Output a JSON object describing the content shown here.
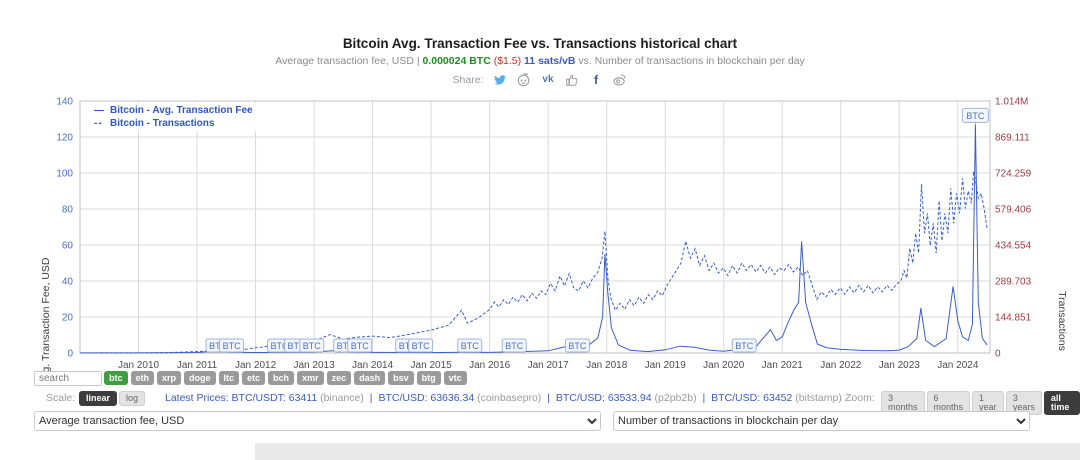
{
  "page_title": "Bitcoin Avg. Transaction Fee vs. Transactions historical chart",
  "subtitle": {
    "prefix": "Average transaction fee, USD | ",
    "btc_value": "0.000024 BTC",
    "usd_value": " ($1.5) ",
    "sats_value": "11 sats/vB",
    "suffix": " vs. Number of transactions in blockchain per day"
  },
  "share": {
    "label": "Share:",
    "icons": [
      "twitter",
      "reddit",
      "vk",
      "like",
      "facebook",
      "weibo"
    ],
    "vk_text": "vk",
    "fb_text": "f"
  },
  "search": {
    "placeholder": "search"
  },
  "coins": {
    "active": "btc",
    "items": [
      "btc",
      "eth",
      "xrp",
      "doge",
      "ltc",
      "etc",
      "bch",
      "xmr",
      "zec",
      "dash",
      "bsv",
      "btg",
      "vtc"
    ]
  },
  "scale": {
    "label": "Scale:",
    "options": [
      "linear",
      "log"
    ],
    "selected": "linear"
  },
  "latest_prices": {
    "label": "Latest Prices:",
    "separator": "|",
    "items": [
      {
        "pair": "BTC/USDT:",
        "price": "63411",
        "exchange": "(binance)"
      },
      {
        "pair": "BTC/USD:",
        "price": "63636.34",
        "exchange": "(coinbasepro)"
      },
      {
        "pair": "BTC/USD:",
        "price": "63533.94",
        "exchange": "(p2pb2b)"
      },
      {
        "pair": "BTC/USD:",
        "price": "63452",
        "exchange": "(bitstamp)"
      }
    ]
  },
  "zoom": {
    "label": "Zoom:",
    "options": [
      "3 months",
      "6 months",
      "1 year",
      "3 years",
      "all time"
    ],
    "selected": "all time"
  },
  "selectors": {
    "left": "Average transaction fee, USD",
    "right": "Number of transactions in blockchain per day"
  },
  "chart_data": {
    "type": "line",
    "title": "Bitcoin Avg. Transaction Fee vs. Transactions historical chart",
    "grid": true,
    "legend_position": "top-left",
    "x_axis": {
      "min": 2009,
      "max": 2024.55,
      "years": [
        2010,
        2011,
        2012,
        2013,
        2014,
        2015,
        2016,
        2017,
        2018,
        2019,
        2020,
        2021,
        2022,
        2023,
        2024
      ],
      "labels": [
        "Jan 2010",
        "Jan 2011",
        "Jan 2012",
        "Jan 2013",
        "Jan 2014",
        "Jan 2015",
        "Jan 2016",
        "Jan 2017",
        "Jan 2018",
        "Jan 2019",
        "Jan 2020",
        "Jan 2021",
        "Jan 2022",
        "Jan 2023",
        "Jan 2024"
      ]
    },
    "y_left": {
      "title": "Avg. Transaction Fee, USD",
      "max": 140,
      "ticks": [
        0,
        20,
        40,
        60,
        80,
        100,
        120,
        140
      ],
      "color": "#4a6fc9"
    },
    "y_right": {
      "title": "Transactions",
      "max": 1014000,
      "tick_labels": [
        "0",
        "144.851",
        "289.703",
        "434.554",
        "579.406",
        "724.259",
        "869.111",
        "1.014M"
      ],
      "color": "#a33c40"
    },
    "flags": {
      "label": "BTC",
      "bottom_years": [
        2011.36,
        2011.59,
        2012.41,
        2012.7,
        2012.96,
        2013.54,
        2013.78,
        2014.6,
        2014.82,
        2015.66,
        2016.42,
        2017.5,
        2020.35
      ],
      "top": {
        "year": 2024.3,
        "value": 127
      }
    },
    "series": [
      {
        "name": "Bitcoin - Avg. Transaction Fee",
        "symbol": "—",
        "style": "solid",
        "axis": "left",
        "unit": "USD",
        "color": "#3a5ec8",
        "points": [
          [
            2009.0,
            0.05
          ],
          [
            2010.0,
            0.05
          ],
          [
            2010.5,
            0.1
          ],
          [
            2011.0,
            0.3
          ],
          [
            2011.35,
            1.1
          ],
          [
            2011.5,
            0.5
          ],
          [
            2012.0,
            0.3
          ],
          [
            2012.5,
            0.35
          ],
          [
            2013.0,
            0.4
          ],
          [
            2013.3,
            1.3
          ],
          [
            2013.6,
            0.5
          ],
          [
            2014.0,
            0.35
          ],
          [
            2014.5,
            0.3
          ],
          [
            2015.0,
            0.25
          ],
          [
            2015.5,
            0.4
          ],
          [
            2016.0,
            0.35
          ],
          [
            2016.5,
            0.7
          ],
          [
            2017.0,
            1.2
          ],
          [
            2017.2,
            2.8
          ],
          [
            2017.4,
            4.2
          ],
          [
            2017.55,
            3.0
          ],
          [
            2017.7,
            4.5
          ],
          [
            2017.85,
            8.5
          ],
          [
            2017.93,
            20
          ],
          [
            2017.97,
            55
          ],
          [
            2018.02,
            33
          ],
          [
            2018.08,
            14
          ],
          [
            2018.2,
            4.5
          ],
          [
            2018.4,
            1.5
          ],
          [
            2018.7,
            0.8
          ],
          [
            2019.0,
            1.8
          ],
          [
            2019.25,
            3.8
          ],
          [
            2019.5,
            3.2
          ],
          [
            2019.75,
            1.6
          ],
          [
            2020.0,
            1.0
          ],
          [
            2020.3,
            2.2
          ],
          [
            2020.38,
            6.2
          ],
          [
            2020.55,
            3.5
          ],
          [
            2020.8,
            13
          ],
          [
            2020.9,
            7
          ],
          [
            2021.0,
            9
          ],
          [
            2021.1,
            17
          ],
          [
            2021.2,
            24
          ],
          [
            2021.28,
            28
          ],
          [
            2021.33,
            62
          ],
          [
            2021.4,
            28
          ],
          [
            2021.5,
            16
          ],
          [
            2021.6,
            5
          ],
          [
            2021.75,
            3
          ],
          [
            2022.0,
            2
          ],
          [
            2022.4,
            1.4
          ],
          [
            2022.8,
            1.2
          ],
          [
            2023.0,
            1.6
          ],
          [
            2023.15,
            3.5
          ],
          [
            2023.3,
            8
          ],
          [
            2023.37,
            25
          ],
          [
            2023.45,
            7
          ],
          [
            2023.6,
            3.5
          ],
          [
            2023.8,
            8
          ],
          [
            2023.92,
            37
          ],
          [
            2024.0,
            18
          ],
          [
            2024.08,
            9
          ],
          [
            2024.18,
            7
          ],
          [
            2024.25,
            16
          ],
          [
            2024.3,
            127
          ],
          [
            2024.35,
            28
          ],
          [
            2024.42,
            8
          ],
          [
            2024.5,
            4.5
          ]
        ]
      },
      {
        "name": "Bitcoin - Transactions",
        "symbol": "--",
        "style": "dashed",
        "axis": "right",
        "unit": "transactions per day",
        "color": "#3a5ec8",
        "points": [
          [
            2009.0,
            200
          ],
          [
            2009.5,
            300
          ],
          [
            2010.0,
            600
          ],
          [
            2010.5,
            1500
          ],
          [
            2011.0,
            5500
          ],
          [
            2011.3,
            9000
          ],
          [
            2011.6,
            7000
          ],
          [
            2012.0,
            21000
          ],
          [
            2012.4,
            32000
          ],
          [
            2012.8,
            38000
          ],
          [
            2013.0,
            48000
          ],
          [
            2013.27,
            74000
          ],
          [
            2013.5,
            56000
          ],
          [
            2013.75,
            64000
          ],
          [
            2014.0,
            68000
          ],
          [
            2014.3,
            62000
          ],
          [
            2014.6,
            74000
          ],
          [
            2015.0,
            92000
          ],
          [
            2015.3,
            112000
          ],
          [
            2015.52,
            172000
          ],
          [
            2015.62,
            120000
          ],
          [
            2015.8,
            140000
          ],
          [
            2016.0,
            175000
          ],
          [
            2016.08,
            205000
          ],
          [
            2016.16,
            185000
          ],
          [
            2016.24,
            215000
          ],
          [
            2016.32,
            195000
          ],
          [
            2016.4,
            225000
          ],
          [
            2016.48,
            205000
          ],
          [
            2016.56,
            235000
          ],
          [
            2016.64,
            210000
          ],
          [
            2016.72,
            240000
          ],
          [
            2016.8,
            220000
          ],
          [
            2016.88,
            250000
          ],
          [
            2016.96,
            235000
          ],
          [
            2017.04,
            280000
          ],
          [
            2017.12,
            250000
          ],
          [
            2017.2,
            310000
          ],
          [
            2017.28,
            270000
          ],
          [
            2017.36,
            320000
          ],
          [
            2017.44,
            260000
          ],
          [
            2017.52,
            250000
          ],
          [
            2017.6,
            290000
          ],
          [
            2017.68,
            262000
          ],
          [
            2017.76,
            300000
          ],
          [
            2017.84,
            322000
          ],
          [
            2017.92,
            380000
          ],
          [
            2017.97,
            490000
          ],
          [
            2018.02,
            300000
          ],
          [
            2018.07,
            220000
          ],
          [
            2018.15,
            172000
          ],
          [
            2018.23,
            200000
          ],
          [
            2018.31,
            176000
          ],
          [
            2018.39,
            215000
          ],
          [
            2018.47,
            190000
          ],
          [
            2018.55,
            225000
          ],
          [
            2018.63,
            200000
          ],
          [
            2018.71,
            235000
          ],
          [
            2018.79,
            215000
          ],
          [
            2018.87,
            250000
          ],
          [
            2018.95,
            230000
          ],
          [
            2019.03,
            272000
          ],
          [
            2019.11,
            302000
          ],
          [
            2019.19,
            332000
          ],
          [
            2019.27,
            362000
          ],
          [
            2019.35,
            450000
          ],
          [
            2019.43,
            382000
          ],
          [
            2019.51,
            420000
          ],
          [
            2019.59,
            352000
          ],
          [
            2019.67,
            392000
          ],
          [
            2019.75,
            332000
          ],
          [
            2019.83,
            362000
          ],
          [
            2019.91,
            322000
          ],
          [
            2019.99,
            342000
          ],
          [
            2020.07,
            312000
          ],
          [
            2020.15,
            352000
          ],
          [
            2020.23,
            322000
          ],
          [
            2020.31,
            362000
          ],
          [
            2020.39,
            332000
          ],
          [
            2020.47,
            356000
          ],
          [
            2020.55,
            326000
          ],
          [
            2020.63,
            352000
          ],
          [
            2020.71,
            322000
          ],
          [
            2020.79,
            346000
          ],
          [
            2020.87,
            316000
          ],
          [
            2020.95,
            342000
          ],
          [
            2021.03,
            332000
          ],
          [
            2021.11,
            356000
          ],
          [
            2021.19,
            326000
          ],
          [
            2021.27,
            346000
          ],
          [
            2021.35,
            312000
          ],
          [
            2021.43,
            332000
          ],
          [
            2021.51,
            272000
          ],
          [
            2021.59,
            216000
          ],
          [
            2021.67,
            246000
          ],
          [
            2021.75,
            226000
          ],
          [
            2021.83,
            256000
          ],
          [
            2021.91,
            236000
          ],
          [
            2021.99,
            262000
          ],
          [
            2022.07,
            236000
          ],
          [
            2022.15,
            266000
          ],
          [
            2022.23,
            242000
          ],
          [
            2022.31,
            272000
          ],
          [
            2022.39,
            246000
          ],
          [
            2022.47,
            272000
          ],
          [
            2022.55,
            242000
          ],
          [
            2022.63,
            266000
          ],
          [
            2022.71,
            246000
          ],
          [
            2022.79,
            272000
          ],
          [
            2022.87,
            252000
          ],
          [
            2022.95,
            276000
          ],
          [
            2023.03,
            292000
          ],
          [
            2023.08,
            332000
          ],
          [
            2023.13,
            302000
          ],
          [
            2023.18,
            422000
          ],
          [
            2023.23,
            362000
          ],
          [
            2023.28,
            482000
          ],
          [
            2023.33,
            402000
          ],
          [
            2023.38,
            680000
          ],
          [
            2023.43,
            482000
          ],
          [
            2023.48,
            562000
          ],
          [
            2023.53,
            432000
          ],
          [
            2023.58,
            522000
          ],
          [
            2023.63,
            402000
          ],
          [
            2023.68,
            612000
          ],
          [
            2023.73,
            452000
          ],
          [
            2023.78,
            562000
          ],
          [
            2023.83,
            482000
          ],
          [
            2023.88,
            662000
          ],
          [
            2023.93,
            522000
          ],
          [
            2023.98,
            642000
          ],
          [
            2024.03,
            562000
          ],
          [
            2024.08,
            702000
          ],
          [
            2024.13,
            582000
          ],
          [
            2024.18,
            652000
          ],
          [
            2024.23,
            602000
          ],
          [
            2024.27,
            732000
          ],
          [
            2024.31,
            682000
          ],
          [
            2024.35,
            622000
          ],
          [
            2024.4,
            642000
          ],
          [
            2024.45,
            582000
          ],
          [
            2024.5,
            500000
          ]
        ]
      }
    ]
  }
}
